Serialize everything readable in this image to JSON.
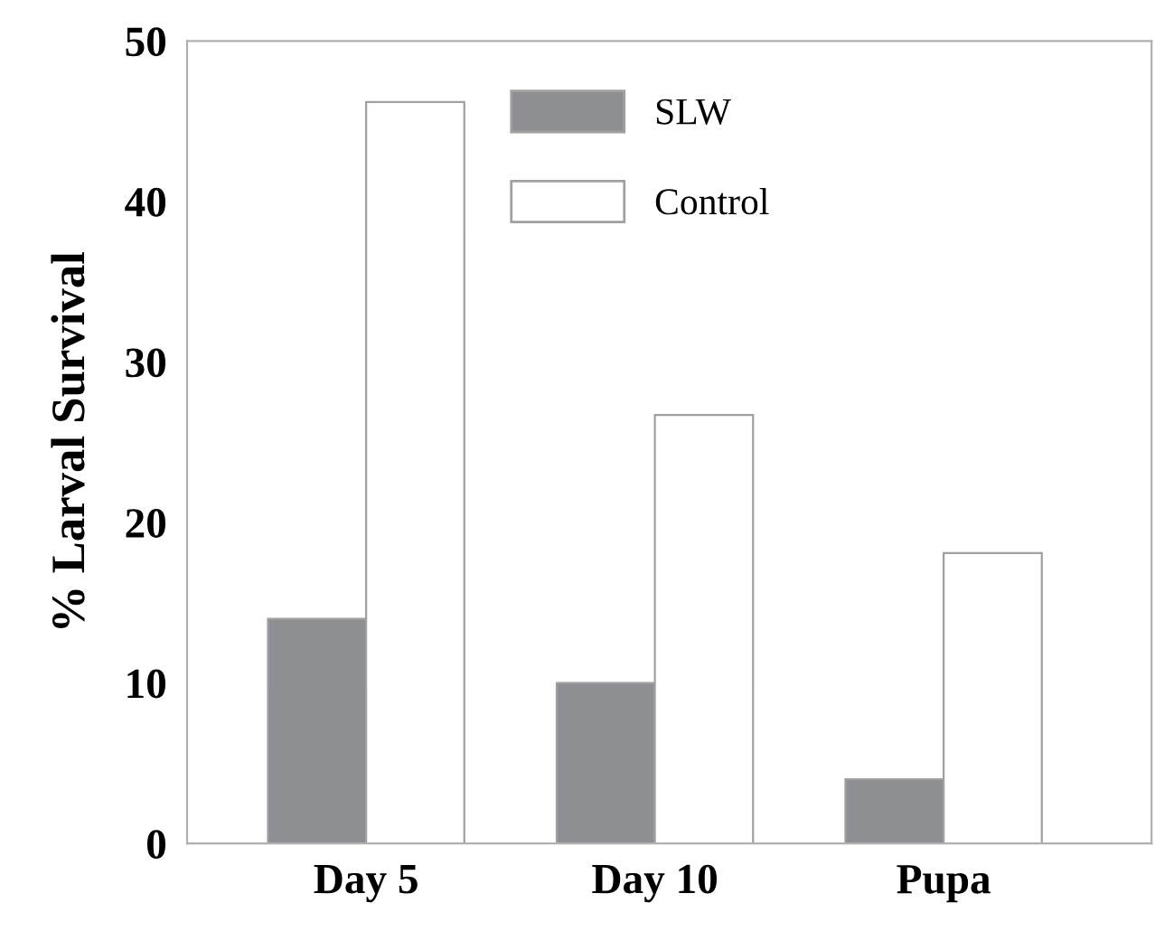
{
  "chart_data": {
    "type": "bar",
    "ylabel": "% Larval Survival",
    "categories": [
      "Day 5",
      "Day 10",
      "Pupa"
    ],
    "series": [
      {
        "name": "SLW",
        "color": "#8e8f93",
        "values": [
          14,
          10,
          4
        ]
      },
      {
        "name": "Control",
        "color": "#ffffff",
        "values": [
          46.2,
          26.7,
          18.1
        ]
      }
    ],
    "ylim": [
      0,
      50
    ],
    "yticks": [
      0,
      10,
      20,
      30,
      40,
      50
    ],
    "grid": false,
    "legend": "top"
  }
}
